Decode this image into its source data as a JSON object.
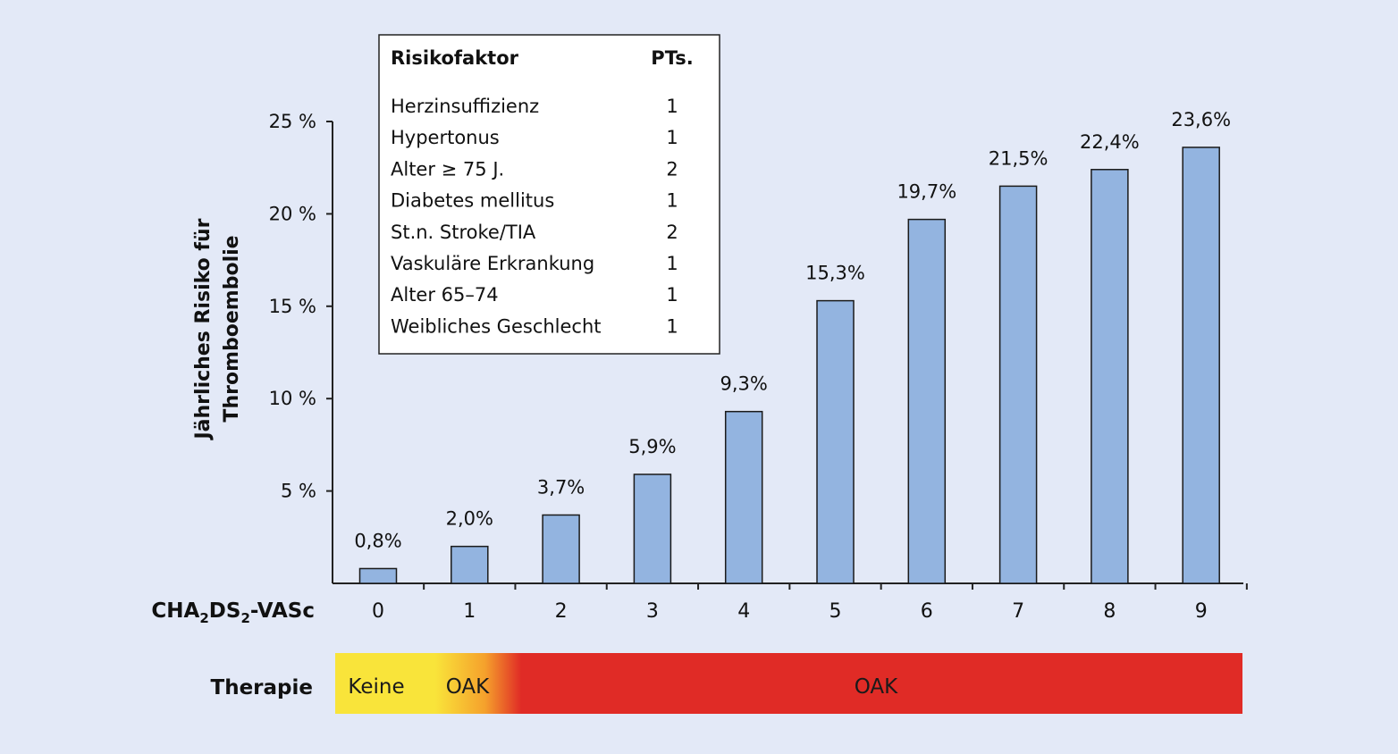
{
  "chart_data": {
    "type": "bar",
    "ylabel_lines": [
      "Jährliches Risiko für",
      "Thromboembolie"
    ],
    "x_axis_label": {
      "main": "CHA",
      "sub1": "2",
      "mid": "DS",
      "sub2": "2",
      "tail": "-VASc"
    },
    "categories": [
      "0",
      "1",
      "2",
      "3",
      "4",
      "5",
      "6",
      "7",
      "8",
      "9"
    ],
    "values": [
      0.8,
      2.0,
      3.7,
      5.9,
      9.3,
      15.3,
      19.7,
      21.5,
      22.4,
      23.6
    ],
    "data_labels": [
      "0,8%",
      "2,0%",
      "3,7%",
      "5,9%",
      "9,3%",
      "15,3%",
      "19,7%",
      "21,5%",
      "22,4%",
      "23,6%"
    ],
    "ylim": [
      0,
      25
    ],
    "y_ticks": [
      {
        "value": 5,
        "label": "5 %"
      },
      {
        "value": 10,
        "label": "10 %"
      },
      {
        "value": 15,
        "label": "15 %"
      },
      {
        "value": 20,
        "label": "20 %"
      },
      {
        "value": 25,
        "label": "25 %"
      }
    ],
    "bar_color": "#93b4e0",
    "grid": false,
    "legend": "none"
  },
  "risk_table": {
    "header": {
      "factor": "Risikofaktor",
      "points": "PTs."
    },
    "rows": [
      {
        "factor": "Herzinsuffizienz",
        "points": "1"
      },
      {
        "factor": "Hypertonus",
        "points": "1"
      },
      {
        "factor": "Alter ≥ 75 J.",
        "points": "2"
      },
      {
        "factor": "Diabetes mellitus",
        "points": "1"
      },
      {
        "factor": "St.n. Stroke/TIA",
        "points": "2"
      },
      {
        "factor": "Vaskuläre Erkrankung",
        "points": "1"
      },
      {
        "factor": "Alter 65–74",
        "points": "1"
      },
      {
        "factor": "Weibliches Geschlecht",
        "points": "1"
      }
    ]
  },
  "therapy": {
    "label": "Therapie",
    "segments": [
      "Keine",
      "OAK",
      "OAK"
    ],
    "colors": {
      "none": "#f9e43a",
      "oak": "#e02b26",
      "transition": "#f5a12c"
    }
  },
  "colors": {
    "background": "#e3e9f7",
    "axis": "#222222"
  }
}
